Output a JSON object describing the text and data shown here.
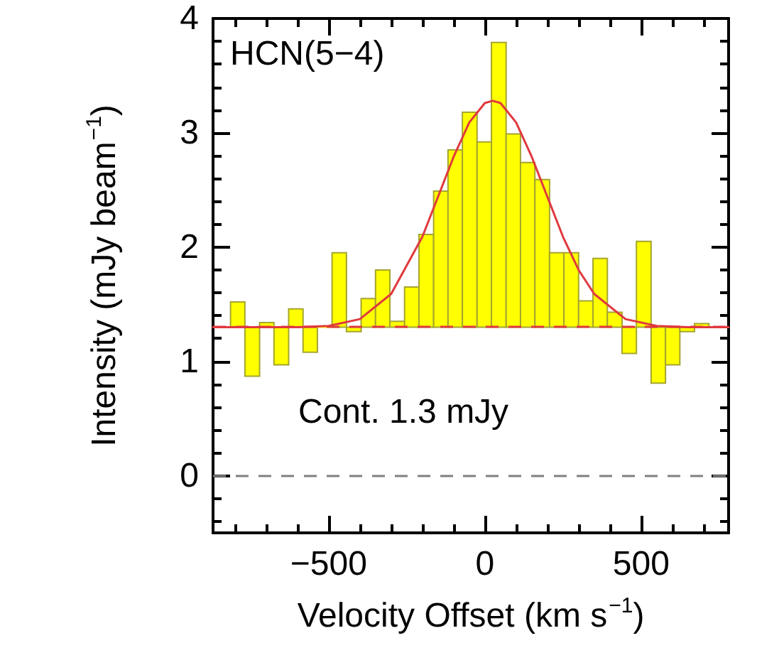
{
  "chart_data": {
    "type": "histogram",
    "xlabel": "Velocity Offset (km s$^{−1}$)",
    "ylabel": "Intensity (mJy beam$^{−1}$)",
    "annotations": [
      "HCN(5−4)",
      "Cont. 1.3 mJy"
    ],
    "series": [
      {
        "color": "#ffff00",
        "bins": [
          -814,
          -768,
          -721,
          -675,
          -628,
          -582,
          -536,
          -489,
          -443,
          -396,
          -350,
          -304,
          -257,
          -211,
          -164,
          -118,
          -72,
          -25,
          21,
          68,
          114,
          160,
          207,
          253,
          300,
          346,
          392,
          439,
          485,
          532,
          578,
          624,
          671,
          717
        ],
        "base": [
          1.3,
          1.3,
          1.3,
          1.3,
          1.3,
          1.3,
          1.3,
          1.3,
          1.3,
          1.3,
          1.3,
          1.3,
          1.3,
          1.3,
          1.3,
          1.3,
          1.3,
          1.3,
          1.3,
          1.3,
          1.3,
          1.3,
          1.3,
          1.3,
          1.3,
          1.3,
          1.3,
          1.3,
          1.3,
          1.3,
          1.3,
          1.3,
          1.3
        ],
        "values": [
          0.22,
          -0.43,
          0.04,
          -0.33,
          0.16,
          -0.22,
          0.0,
          0.65,
          -0.04,
          0.25,
          0.5,
          0.05,
          0.35,
          0.81,
          1.19,
          1.55,
          1.88,
          1.62,
          2.49,
          1.69,
          1.44,
          1.29,
          0.65,
          0.65,
          0.23,
          0.6,
          0.13,
          -0.23,
          0.75,
          -0.49,
          -0.33,
          -0.04,
          0.03
        ]
      },
      {
        "type": "line",
        "color": "#e0393e",
        "x": [
          -870,
          -800,
          -600,
          -500,
          -400,
          -300,
          -200,
          -150,
          -100,
          -50,
          0,
          25,
          50,
          100,
          150,
          200,
          250,
          300,
          350,
          450,
          550,
          650,
          780
        ],
        "values": [
          1.3,
          1.3,
          1.3,
          1.31,
          1.37,
          1.59,
          2.09,
          2.44,
          2.79,
          3.09,
          3.26,
          3.28,
          3.26,
          3.09,
          2.79,
          2.44,
          2.09,
          1.8,
          1.59,
          1.37,
          1.31,
          1.3,
          1.3
        ]
      }
    ],
    "ref_lines": [
      {
        "axis": "y",
        "value": 1.3,
        "color": "#e0393e",
        "line_style": "dashed"
      },
      {
        "axis": "y",
        "value": 0,
        "color": "#808080",
        "line_style": "dashed"
      }
    ],
    "xlim": [
      -870,
      780
    ],
    "xticks": [
      {
        "value": -800,
        "label": null
      },
      {
        "value": -700,
        "label": null
      },
      {
        "value": -600,
        "label": null
      },
      {
        "value": -500,
        "label": "−500"
      },
      {
        "value": -400,
        "label": null
      },
      {
        "value": -300,
        "label": null
      },
      {
        "value": -200,
        "label": null
      },
      {
        "value": -100,
        "label": null
      },
      0,
      {
        "value": 100,
        "label": null
      },
      {
        "value": 200,
        "label": null
      },
      {
        "value": 300,
        "label": null
      },
      {
        "value": 400,
        "label": null
      },
      500,
      {
        "value": 600,
        "label": null
      },
      {
        "value": 700,
        "label": null
      }
    ],
    "ylim": [
      -0.5,
      4
    ],
    "yticks": [
      {
        "value": -0.4,
        "label": null
      },
      {
        "value": -0.2,
        "label": null
      },
      0,
      {
        "value": 0.2,
        "label": null
      },
      {
        "value": 0.4,
        "label": null
      },
      {
        "value": 0.6,
        "label": null
      },
      {
        "value": 0.8,
        "label": null
      },
      1,
      {
        "value": 1.2,
        "label": null
      },
      {
        "value": 1.4,
        "label": null
      },
      {
        "value": 1.6,
        "label": null
      },
      {
        "value": 1.8,
        "label": null
      },
      2,
      {
        "value": 2.2,
        "label": null
      },
      {
        "value": 2.4,
        "label": null
      },
      {
        "value": 2.6,
        "label": null
      },
      {
        "value": 2.8,
        "label": null
      },
      3,
      {
        "value": 3.2,
        "label": null
      },
      {
        "value": 3.4,
        "label": null
      },
      {
        "value": 3.6,
        "label": null
      },
      {
        "value": 3.8,
        "label": null
      },
      4
    ],
    "grid": false,
    "marker": "none",
    "line_style": "solid"
  }
}
